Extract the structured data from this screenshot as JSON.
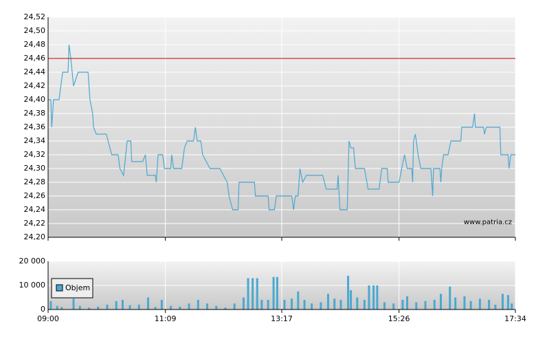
{
  "chart_data": [
    {
      "type": "line",
      "color": "#4aa8d0",
      "x": [
        "09:00",
        "09:03",
        "09:04",
        "09:06",
        "09:12",
        "09:14",
        "09:16",
        "09:22",
        "09:23",
        "09:25",
        "09:28",
        "09:33",
        "09:44",
        "09:46",
        "09:49",
        "09:50",
        "09:53",
        "10:04",
        "10:06",
        "10:10",
        "10:17",
        "10:19",
        "10:23",
        "10:27",
        "10:31",
        "10:32",
        "10:44",
        "10:47",
        "10:49",
        "10:58",
        "10:59",
        "11:01",
        "11:06",
        "11:08",
        "11:15",
        "11:16",
        "11:18",
        "11:27",
        "11:30",
        "11:33",
        "11:40",
        "11:42",
        "11:44",
        "11:48",
        "11:50",
        "11:58",
        "12:09",
        "12:17",
        "12:19",
        "12:23",
        "12:29",
        "12:30",
        "12:47",
        "12:48",
        "13:02",
        "13:03",
        "13:09",
        "13:11",
        "13:28",
        "13:30",
        "13:32",
        "13:35",
        "13:37",
        "13:40",
        "13:44",
        "14:02",
        "14:06",
        "14:18",
        "14:19",
        "14:21",
        "14:29",
        "14:31",
        "14:33",
        "14:36",
        "14:38",
        "14:48",
        "14:52",
        "15:04",
        "15:07",
        "15:13",
        "15:14",
        "15:26",
        "15:29",
        "15:32",
        "15:35",
        "15:40",
        "15:41",
        "15:42",
        "15:44",
        "15:47",
        "15:50",
        "16:01",
        "16:03",
        "16:04",
        "16:11",
        "16:12",
        "16:13",
        "16:15",
        "16:20",
        "16:23",
        "16:34",
        "16:35",
        "16:47",
        "16:49",
        "16:50",
        "16:59",
        "17:00",
        "17:02",
        "17:17",
        "17:18",
        "17:26",
        "17:27",
        "17:29",
        "17:34"
      ],
      "values": [
        24.4,
        24.4,
        24.36,
        24.4,
        24.4,
        24.42,
        24.44,
        24.44,
        24.48,
        24.46,
        24.42,
        24.44,
        24.44,
        24.4,
        24.38,
        24.36,
        24.35,
        24.35,
        24.34,
        24.32,
        24.32,
        24.3,
        24.29,
        24.34,
        24.34,
        24.31,
        24.31,
        24.32,
        24.29,
        24.29,
        24.28,
        24.32,
        24.32,
        24.3,
        24.3,
        24.32,
        24.3,
        24.3,
        24.33,
        24.34,
        24.34,
        24.36,
        24.34,
        24.34,
        24.32,
        24.3,
        24.3,
        24.28,
        24.26,
        24.24,
        24.24,
        24.28,
        24.28,
        24.26,
        24.26,
        24.24,
        24.24,
        24.26,
        24.26,
        24.24,
        24.26,
        24.26,
        24.3,
        24.28,
        24.29,
        24.29,
        24.27,
        24.27,
        24.29,
        24.24,
        24.24,
        24.34,
        24.33,
        24.33,
        24.3,
        24.3,
        24.27,
        24.27,
        24.3,
        24.3,
        24.28,
        24.28,
        24.3,
        24.32,
        24.3,
        24.3,
        24.28,
        24.34,
        24.35,
        24.32,
        24.3,
        24.3,
        24.26,
        24.3,
        24.3,
        24.28,
        24.3,
        24.32,
        24.32,
        24.34,
        24.34,
        24.36,
        24.36,
        24.38,
        24.36,
        24.36,
        24.35,
        24.36,
        24.36,
        24.32,
        24.32,
        24.3,
        24.32,
        24.32
      ],
      "ylim": [
        24.2,
        24.52
      ],
      "yticks": [
        {
          "value": 24.2,
          "label": "24,20"
        },
        {
          "value": 24.22,
          "label": "24,22"
        },
        {
          "value": 24.24,
          "label": "24,24"
        },
        {
          "value": 24.26,
          "label": "24,26"
        },
        {
          "value": 24.28,
          "label": "24,28"
        },
        {
          "value": 24.3,
          "label": "24,30"
        },
        {
          "value": 24.32,
          "label": "24,32"
        },
        {
          "value": 24.34,
          "label": "24,34"
        },
        {
          "value": 24.36,
          "label": "24,36"
        },
        {
          "value": 24.38,
          "label": "24,38"
        },
        {
          "value": 24.4,
          "label": "24,40"
        },
        {
          "value": 24.42,
          "label": "24,42"
        },
        {
          "value": 24.44,
          "label": "24,44"
        },
        {
          "value": 24.46,
          "label": "24,46"
        },
        {
          "value": 24.48,
          "label": "24,48"
        },
        {
          "value": 24.5,
          "label": "24,50"
        },
        {
          "value": 24.52,
          "label": "24,52"
        }
      ],
      "reference_line": 24.46,
      "reference_color": "#cc0000",
      "grid": true,
      "annotation": "www.patria.cz"
    },
    {
      "type": "bar",
      "x": [
        "09:03",
        "09:10",
        "09:15",
        "09:28",
        "09:35",
        "09:45",
        "09:55",
        "10:05",
        "10:15",
        "10:22",
        "10:30",
        "10:40",
        "10:50",
        "10:58",
        "11:05",
        "11:15",
        "11:25",
        "11:35",
        "11:45",
        "11:55",
        "12:05",
        "12:15",
        "12:25",
        "12:35",
        "12:40",
        "12:45",
        "12:50",
        "12:55",
        "13:02",
        "13:08",
        "13:12",
        "13:20",
        "13:28",
        "13:35",
        "13:42",
        "13:50",
        "14:00",
        "14:08",
        "14:15",
        "14:22",
        "14:30",
        "14:33",
        "14:40",
        "14:48",
        "14:53",
        "14:58",
        "15:02",
        "15:10",
        "15:20",
        "15:30",
        "15:35",
        "15:45",
        "15:55",
        "16:05",
        "16:12",
        "16:22",
        "16:28",
        "16:38",
        "16:45",
        "16:55",
        "17:05",
        "17:12",
        "17:20",
        "17:26",
        "17:30"
      ],
      "series": [
        {
          "name": "Objem",
          "color": "#4aa8d0",
          "values": [
            3500,
            1500,
            1000,
            4500,
            1500,
            800,
            1200,
            2000,
            3500,
            4000,
            1800,
            2000,
            5000,
            1000,
            4000,
            1500,
            1200,
            2500,
            4000,
            2500,
            1500,
            800,
            2500,
            5000,
            13000,
            13000,
            13000,
            4000,
            4000,
            13500,
            13500,
            4000,
            4500,
            7500,
            4000,
            2500,
            3000,
            6500,
            4500,
            4000,
            14000,
            8000,
            5000,
            4000,
            10000,
            10000,
            10000,
            3000,
            2500,
            4000,
            5500,
            3000,
            3500,
            4000,
            6500,
            9500,
            5000,
            5500,
            3500,
            4500,
            4000,
            2000,
            6500,
            6000,
            2500
          ]
        }
      ],
      "xlim": [
        "09:00",
        "17:34"
      ],
      "xticks": [
        "09:00",
        "11:09",
        "13:17",
        "15:26",
        "17:34"
      ],
      "ylim": [
        0,
        20000
      ],
      "yticks": [
        0,
        {
          "value": 10000,
          "label": "10 000"
        },
        {
          "value": 20000,
          "label": "20 000"
        }
      ],
      "grid": true,
      "legend": "upper-left"
    }
  ]
}
